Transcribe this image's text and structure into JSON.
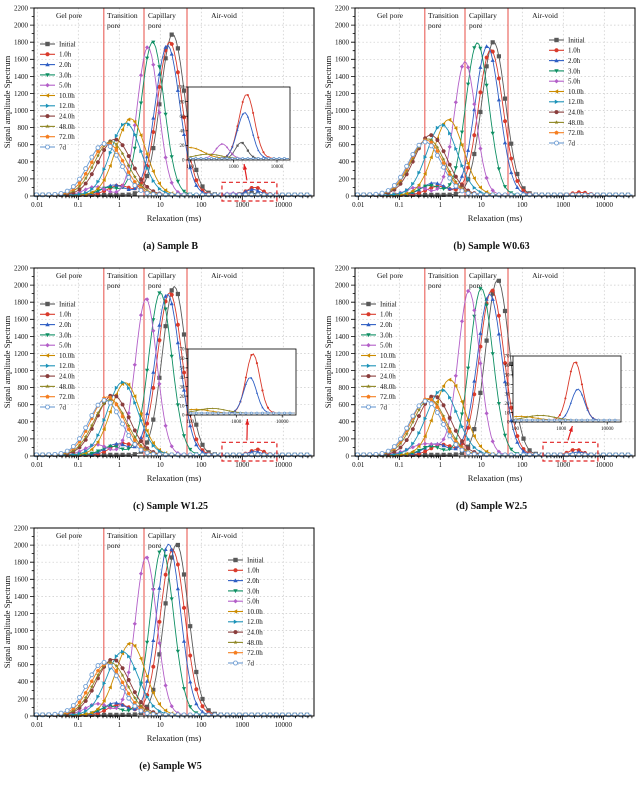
{
  "chart_data": {
    "type": "line",
    "xlabel": "Relaxation (ms)",
    "ylabel": "Signal amplitude Spectrum",
    "xscale": "log",
    "xlim": [
      0.01,
      10000
    ],
    "ylim": [
      0,
      2200
    ],
    "ytick_step": 200,
    "xtick_labels": [
      "0.01",
      "0.1",
      "1",
      "10",
      "100",
      "1000",
      "10000"
    ],
    "grid": "dotted",
    "baseline": 13,
    "pore_boundaries_ms": [
      0.42,
      4.0,
      45
    ],
    "pore_boundary_color": "#e8524a",
    "region_labels": [
      [
        "Gel pore"
      ],
      [
        "Transition",
        "pore"
      ],
      [
        "Capillary",
        "pore"
      ],
      [
        "Air-void"
      ]
    ],
    "series_style": [
      {
        "name": "Initial",
        "color": "#595959",
        "marker": "square"
      },
      {
        "name": "1.0h",
        "color": "#d93a2b",
        "marker": "circle"
      },
      {
        "name": "2.0h",
        "color": "#2f5fc4",
        "marker": "triangle-up"
      },
      {
        "name": "3.0h",
        "color": "#0e8f63",
        "marker": "triangle-down"
      },
      {
        "name": "5.0h",
        "color": "#b35fc8",
        "marker": "diamond"
      },
      {
        "name": "10.0h",
        "color": "#cc8b00",
        "marker": "triangle-left"
      },
      {
        "name": "12.0h",
        "color": "#1d93b8",
        "marker": "triangle-right"
      },
      {
        "name": "24.0h",
        "color": "#8a3d3c",
        "marker": "circle"
      },
      {
        "name": "48.0h",
        "color": "#8f8623",
        "marker": "star"
      },
      {
        "name": "72.0h",
        "color": "#f57e20",
        "marker": "pentagon"
      },
      {
        "name": "7d",
        "color": "#6b9bd2",
        "marker": "circle-open"
      }
    ],
    "charts": [
      {
        "caption": "(a) Sample B",
        "legend_position": "left",
        "peaks_ms_height_width": {
          "Initial": [
            [
              20,
              1880,
              0.3
            ],
            [
              1500,
              22,
              0.14
            ]
          ],
          "1.0h": [
            [
              17,
              1790,
              0.3
            ],
            [
              1.0,
              110,
              0.28
            ],
            [
              2000,
              88,
              0.18
            ]
          ],
          "2.0h": [
            [
              15,
              1750,
              0.3
            ],
            [
              0.75,
              115,
              0.28
            ],
            [
              1800,
              63,
              0.17
            ]
          ],
          "3.0h": [
            [
              6.5,
              1790,
              0.28
            ],
            [
              0.55,
              85,
              0.25
            ]
          ],
          "5.0h": [
            [
              5,
              1730,
              0.26
            ],
            [
              0.26,
              95,
              0.26
            ],
            [
              550,
              20,
              0.15
            ]
          ],
          "10.0h": [
            [
              1.9,
              890,
              0.36
            ]
          ],
          "12.0h": [
            [
              1.45,
              840,
              0.37
            ]
          ],
          "24.0h": [
            [
              0.78,
              650,
              0.4
            ]
          ],
          "48.0h": [
            [
              0.62,
              625,
              0.4
            ]
          ],
          "72.0h": [
            [
              0.52,
              605,
              0.4
            ]
          ],
          "7d": [
            [
              0.44,
              600,
              0.4
            ]
          ]
        },
        "zoom_box": true,
        "inset": {
          "xlim": [
            100,
            10000
          ],
          "ylim": [
            0,
            100
          ],
          "ytick_step": 20,
          "xtick_labels": [
            "100",
            "1000",
            "10000"
          ],
          "baseline": 2,
          "peaks_ms_height_width": {
            "10.0h": [
              [
                100,
                15,
                0.3
              ]
            ],
            "48.0h": [
              [
                260,
                6,
                0.3
              ]
            ],
            "5.0h": [
              [
                550,
                20,
                0.15
              ]
            ],
            "Initial": [
              [
                1500,
                22,
                0.13
              ]
            ],
            "2.0h": [
              [
                1800,
                63,
                0.17
              ]
            ],
            "1.0h": [
              [
                2000,
                88,
                0.18
              ]
            ]
          }
        }
      },
      {
        "caption": "(b) Sample W0.63",
        "legend_position": "right",
        "peaks_ms_height_width": {
          "Initial": [
            [
              20,
              1790,
              0.29
            ]
          ],
          "1.0h": [
            [
              17,
              1700,
              0.3
            ],
            [
              0.9,
              100,
              0.28
            ],
            [
              2600,
              30,
              0.18
            ]
          ],
          "2.0h": [
            [
              14,
              1740,
              0.3
            ],
            [
              0.7,
              140,
              0.28
            ]
          ],
          "3.0h": [
            [
              8,
              1780,
              0.28
            ],
            [
              0.55,
              110,
              0.26
            ]
          ],
          "5.0h": [
            [
              4,
              1560,
              0.26
            ],
            [
              0.28,
              90,
              0.26
            ]
          ],
          "10.0h": [
            [
              1.6,
              880,
              0.36
            ]
          ],
          "12.0h": [
            [
              1.1,
              820,
              0.37
            ]
          ],
          "24.0h": [
            [
              0.58,
              700,
              0.4
            ]
          ],
          "48.0h": [
            [
              0.5,
              655,
              0.4
            ]
          ],
          "72.0h": [
            [
              0.46,
              640,
              0.4
            ]
          ],
          "7d": [
            [
              0.42,
              620,
              0.4
            ]
          ]
        },
        "zoom_box": false
      },
      {
        "caption": "(c) Sample W1.25",
        "legend_position": "left",
        "peaks_ms_height_width": {
          "Initial": [
            [
              22,
              1970,
              0.29
            ]
          ],
          "1.0h": [
            [
              17,
              1900,
              0.3
            ],
            [
              1.2,
              135,
              0.28
            ],
            [
              2300,
              63,
              0.16
            ]
          ],
          "2.0h": [
            [
              15,
              1880,
              0.3
            ],
            [
              0.9,
              130,
              0.28
            ],
            [
              2000,
              38,
              0.15
            ]
          ],
          "3.0h": [
            [
              10,
              1900,
              0.28
            ],
            [
              0.65,
              100,
              0.26
            ]
          ],
          "5.0h": [
            [
              4.5,
              1830,
              0.26
            ],
            [
              0.28,
              120,
              0.28
            ]
          ],
          "10.0h": [
            [
              1.4,
              845,
              0.36
            ]
          ],
          "12.0h": [
            [
              1.2,
              850,
              0.37
            ]
          ],
          "24.0h": [
            [
              0.7,
              700,
              0.4
            ]
          ],
          "48.0h": [
            [
              0.6,
              645,
              0.4
            ]
          ],
          "72.0h": [
            [
              0.52,
              680,
              0.4
            ]
          ],
          "7d": [
            [
              0.45,
              640,
              0.4
            ]
          ]
        },
        "zoom_box": true,
        "inset": {
          "xlim": [
            100,
            10000
          ],
          "ylim": [
            0,
            70
          ],
          "ytick_step": 10,
          "xtick_labels": [
            "100",
            "1000",
            "10000"
          ],
          "baseline": 2,
          "peaks_ms_height_width": {
            "10.0h": [
              [
                130,
                4,
                0.3
              ]
            ],
            "48.0h": [
              [
                300,
                5,
                0.3
              ]
            ],
            "2.0h": [
              [
                2000,
                38,
                0.14
              ]
            ],
            "1.0h": [
              [
                2300,
                63,
                0.15
              ]
            ]
          }
        }
      },
      {
        "caption": "(d) Sample W2.5",
        "legend_position": "left",
        "peaks_ms_height_width": {
          "Initial": [
            [
              25,
              2050,
              0.29
            ]
          ],
          "1.0h": [
            [
              18,
              1930,
              0.3
            ],
            [
              1.1,
              120,
              0.28
            ],
            [
              2000,
              62,
              0.16
            ]
          ],
          "2.0h": [
            [
              16,
              1880,
              0.3
            ],
            [
              0.8,
              130,
              0.28
            ],
            [
              2300,
              33,
              0.15
            ]
          ],
          "3.0h": [
            [
              10,
              1950,
              0.28
            ],
            [
              0.6,
              100,
              0.26
            ]
          ],
          "5.0h": [
            [
              5,
              1920,
              0.26
            ],
            [
              0.45,
              130,
              0.38
            ]
          ],
          "10.0h": [
            [
              1.7,
              880,
              0.36
            ]
          ],
          "12.0h": [
            [
              1.1,
              760,
              0.38
            ]
          ],
          "24.0h": [
            [
              0.7,
              690,
              0.4
            ]
          ],
          "48.0h": [
            [
              0.55,
              650,
              0.4
            ]
          ],
          "72.0h": [
            [
              0.5,
              660,
              0.4
            ]
          ],
          "7d": [
            [
              0.45,
              630,
              0.4
            ]
          ]
        },
        "zoom_box": true,
        "inset": {
          "xlim": [
            100,
            10000
          ],
          "ylim": [
            0,
            70
          ],
          "ytick_step": 10,
          "xtick_labels": [
            "100",
            "1000",
            "10000"
          ],
          "baseline": 2,
          "peaks_ms_height_width": {
            "10.0h": [
              [
                130,
                4,
                0.3
              ]
            ],
            "48.0h": [
              [
                350,
                5,
                0.3
              ]
            ],
            "2.0h": [
              [
                2300,
                33,
                0.14
              ]
            ],
            "1.0h": [
              [
                2000,
                62,
                0.15
              ]
            ]
          }
        }
      },
      {
        "caption": "(e) Sample W5",
        "legend_position": "right",
        "peaks_ms_height_width": {
          "Initial": [
            [
              25,
              2000,
              0.29
            ]
          ],
          "1.0h": [
            [
              20,
              1930,
              0.3
            ],
            [
              1.0,
              120,
              0.28
            ]
          ],
          "2.0h": [
            [
              16,
              2000,
              0.29
            ],
            [
              0.8,
              140,
              0.28
            ]
          ],
          "3.0h": [
            [
              11,
              1950,
              0.28
            ],
            [
              0.6,
              100,
              0.26
            ]
          ],
          "5.0h": [
            [
              4.5,
              1850,
              0.26
            ],
            [
              0.3,
              130,
              0.3
            ]
          ],
          "10.0h": [
            [
              1.9,
              840,
              0.36
            ]
          ],
          "12.0h": [
            [
              1.2,
              740,
              0.38
            ]
          ],
          "24.0h": [
            [
              0.7,
              650,
              0.4
            ]
          ],
          "48.0h": [
            [
              0.6,
              615,
              0.4
            ]
          ],
          "72.0h": [
            [
              0.5,
              600,
              0.4
            ]
          ],
          "7d": [
            [
              0.42,
              615,
              0.4
            ]
          ]
        },
        "zoom_box": false
      }
    ]
  }
}
